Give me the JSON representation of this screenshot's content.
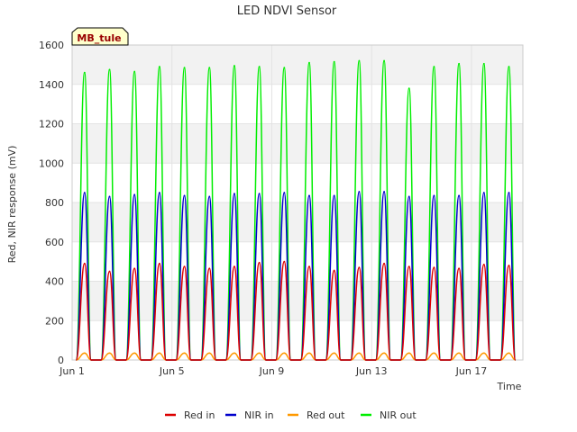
{
  "chart_data": {
    "type": "line",
    "title": "LED NDVI Sensor",
    "xlabel": "Time",
    "ylabel": "Red, NIR response (mV)",
    "site_tag": "MB_tule",
    "xlim": [
      "2024-06-01",
      "2024-06-19"
    ],
    "ylim": [
      0,
      1600
    ],
    "x_ticks": [
      {
        "date": "2024-06-01",
        "label": "Jun 1"
      },
      {
        "date": "2024-06-05",
        "label": "Jun 5"
      },
      {
        "date": "2024-06-09",
        "label": "Jun 9"
      },
      {
        "date": "2024-06-13",
        "label": "Jun 13"
      },
      {
        "date": "2024-06-17",
        "label": "Jun 17"
      }
    ],
    "y_ticks": [
      0,
      200,
      400,
      600,
      800,
      1000,
      1200,
      1400,
      1600
    ],
    "grid": true,
    "background_bands": true,
    "legend_position": "bottom",
    "series": [
      {
        "name": "Red in",
        "color": "#dd0000",
        "linewidth": 1.5,
        "x": [
          "2024-06-01 12:00",
          "2024-06-02 12:00",
          "2024-06-03 12:00",
          "2024-06-04 12:00",
          "2024-06-05 12:00",
          "2024-06-06 12:00",
          "2024-06-07 12:00",
          "2024-06-08 12:00",
          "2024-06-09 12:00",
          "2024-06-10 12:00",
          "2024-06-11 12:00",
          "2024-06-12 12:00",
          "2024-06-13 12:00",
          "2024-06-14 12:00",
          "2024-06-15 12:00",
          "2024-06-16 12:00",
          "2024-06-17 12:00",
          "2024-06-18 12:00"
        ],
        "values": [
          490,
          450,
          465,
          490,
          475,
          465,
          475,
          495,
          500,
          475,
          455,
          470,
          490,
          475,
          470,
          465,
          485,
          480
        ]
      },
      {
        "name": "NIR in",
        "color": "#0000cc",
        "linewidth": 1.5,
        "x": [
          "2024-06-01 12:00",
          "2024-06-02 12:00",
          "2024-06-03 12:00",
          "2024-06-04 12:00",
          "2024-06-05 12:00",
          "2024-06-06 12:00",
          "2024-06-07 12:00",
          "2024-06-08 12:00",
          "2024-06-09 12:00",
          "2024-06-10 12:00",
          "2024-06-11 12:00",
          "2024-06-12 12:00",
          "2024-06-13 12:00",
          "2024-06-14 12:00",
          "2024-06-15 12:00",
          "2024-06-16 12:00",
          "2024-06-17 12:00",
          "2024-06-18 12:00"
        ],
        "values": [
          850,
          830,
          840,
          850,
          835,
          830,
          845,
          845,
          850,
          835,
          835,
          855,
          855,
          830,
          835,
          835,
          850,
          850
        ]
      },
      {
        "name": "Red out",
        "color": "#ff9900",
        "linewidth": 1.5,
        "x": [
          "2024-06-01 12:00",
          "2024-06-02 12:00",
          "2024-06-03 12:00",
          "2024-06-04 12:00",
          "2024-06-05 12:00",
          "2024-06-06 12:00",
          "2024-06-07 12:00",
          "2024-06-08 12:00",
          "2024-06-09 12:00",
          "2024-06-10 12:00",
          "2024-06-11 12:00",
          "2024-06-12 12:00",
          "2024-06-13 12:00",
          "2024-06-14 12:00",
          "2024-06-15 12:00",
          "2024-06-16 12:00",
          "2024-06-17 12:00",
          "2024-06-18 12:00"
        ],
        "values": [
          35,
          35,
          35,
          35,
          35,
          35,
          35,
          35,
          35,
          35,
          35,
          35,
          35,
          35,
          35,
          35,
          35,
          35
        ]
      },
      {
        "name": "NIR out",
        "color": "#00ee00",
        "linewidth": 1.5,
        "x": [
          "2024-06-01 12:00",
          "2024-06-02 12:00",
          "2024-06-03 12:00",
          "2024-06-04 12:00",
          "2024-06-05 12:00",
          "2024-06-06 12:00",
          "2024-06-07 12:00",
          "2024-06-08 12:00",
          "2024-06-09 12:00",
          "2024-06-10 12:00",
          "2024-06-11 12:00",
          "2024-06-12 12:00",
          "2024-06-13 12:00",
          "2024-06-14 12:00",
          "2024-06-15 12:00",
          "2024-06-16 12:00",
          "2024-06-17 12:00",
          "2024-06-18 12:00"
        ],
        "values": [
          1460,
          1475,
          1465,
          1490,
          1485,
          1485,
          1495,
          1490,
          1485,
          1510,
          1515,
          1520,
          1520,
          1380,
          1490,
          1505,
          1505,
          1490
        ]
      }
    ]
  }
}
